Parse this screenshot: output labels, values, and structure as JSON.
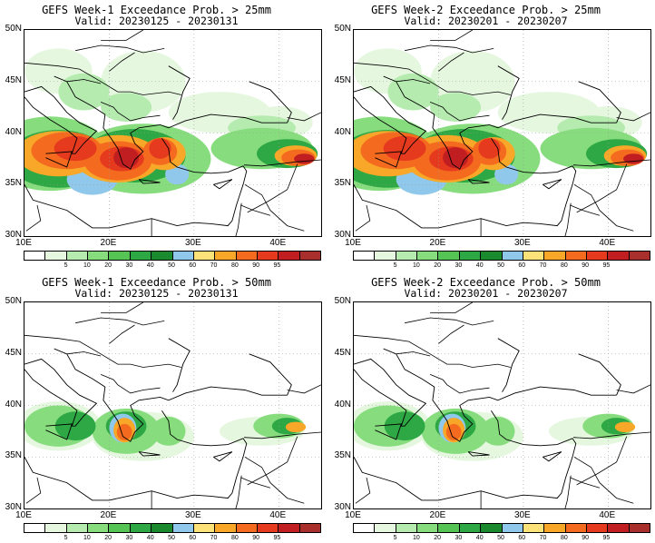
{
  "panels": [
    {
      "title": "GEFS Week-1 Exceedance Prob. > 25mm",
      "valid": "Valid: 20230125 - 20230131",
      "intensity": "high"
    },
    {
      "title": "GEFS Week-2 Exceedance Prob. > 25mm",
      "valid": "Valid: 20230201 - 20230207",
      "intensity": "high"
    },
    {
      "title": "GEFS Week-1 Exceedance Prob. > 50mm",
      "valid": "Valid: 20230125 - 20230131",
      "intensity": "low"
    },
    {
      "title": "GEFS Week-2 Exceedance Prob. > 50mm",
      "valid": "Valid: 20230201 - 20230207",
      "intensity": "low"
    }
  ],
  "axes": {
    "lat_labels": [
      "50N",
      "45N",
      "40N",
      "35N",
      "30N"
    ],
    "lon_labels": [
      "10E",
      "20E",
      "30E",
      "40E"
    ]
  },
  "colorbar": {
    "labels": [
      "5",
      "10",
      "20",
      "30",
      "40",
      "50",
      "60",
      "70",
      "80",
      "90",
      "95"
    ],
    "colors": [
      "#ffffff",
      "#e6f7e0",
      "#b6ebb0",
      "#87dd7e",
      "#55c455",
      "#2ea844",
      "#1b8a2e",
      "#8fc8ea",
      "#fde27a",
      "#f8a728",
      "#f46a1f",
      "#e53a1e",
      "#c01e20",
      "#a82f2c"
    ]
  }
}
